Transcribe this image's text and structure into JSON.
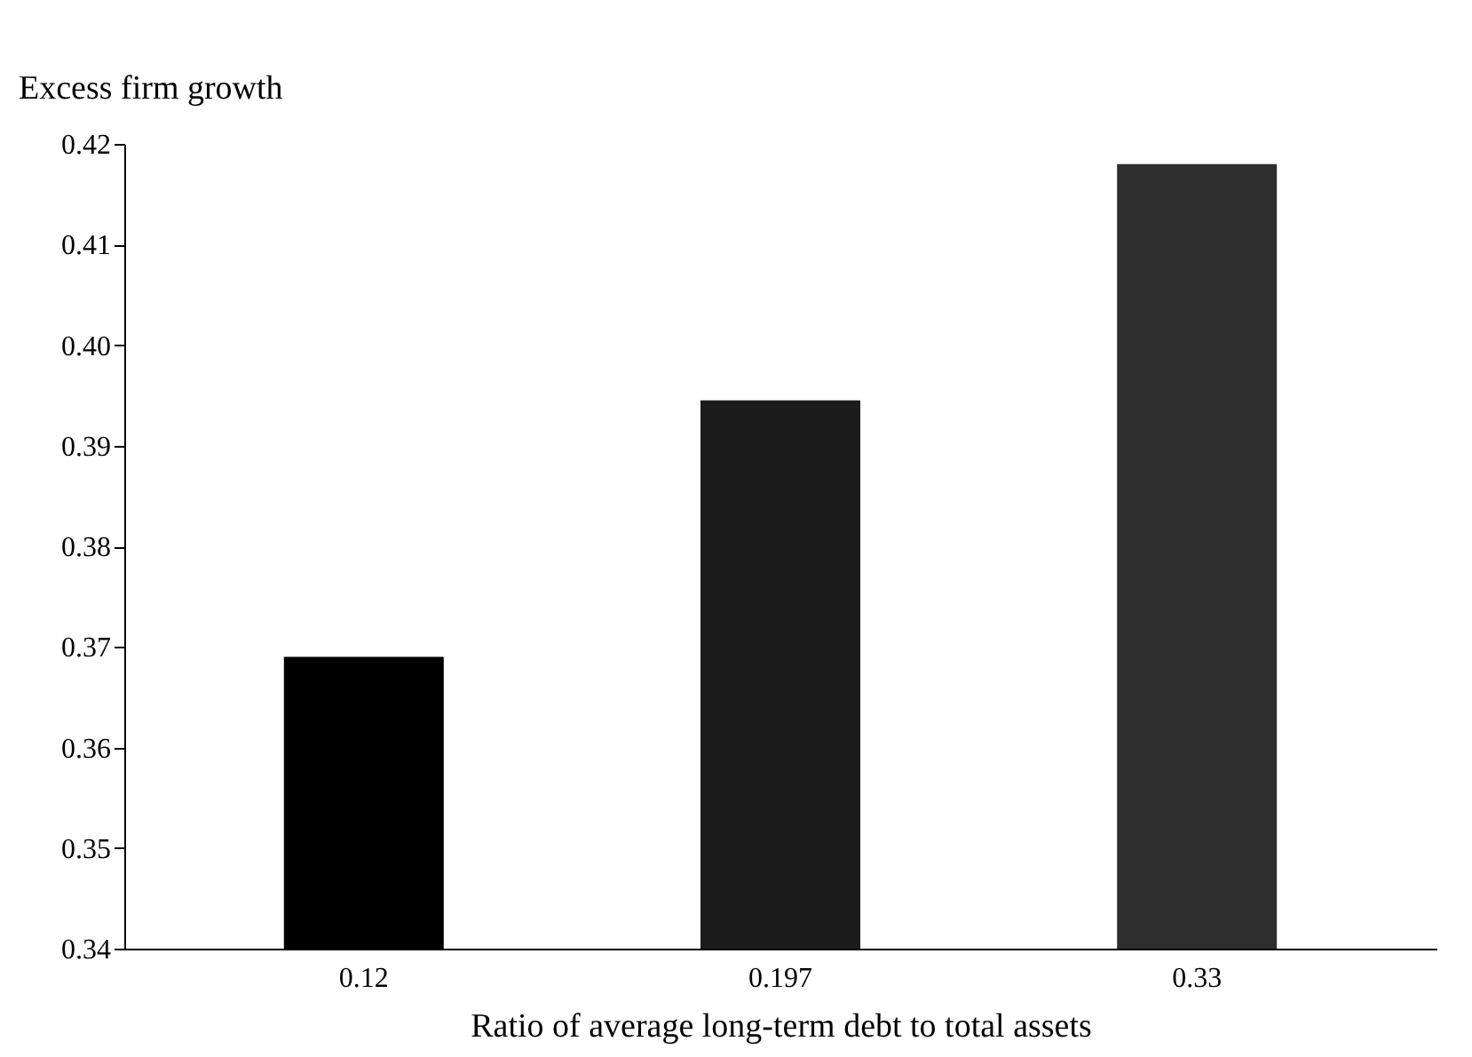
{
  "chart_data": {
    "type": "bar",
    "xlabel": "Ratio of average long-term debt to total assets",
    "ylabel": "Excess firm growth",
    "categories": [
      "0.12",
      "0.197",
      "0.33"
    ],
    "values": [
      0.369,
      0.3945,
      0.418
    ],
    "colors": [
      "#000000",
      "#1c1c1c",
      "#2e2e2e"
    ],
    "ylim": [
      0.34,
      0.42
    ],
    "yticks": [
      0.34,
      0.35,
      0.36,
      0.37,
      0.38,
      0.39,
      {
        "value": 0.4,
        "label": "0.40"
      },
      0.41,
      0.42
    ],
    "grid": false
  }
}
